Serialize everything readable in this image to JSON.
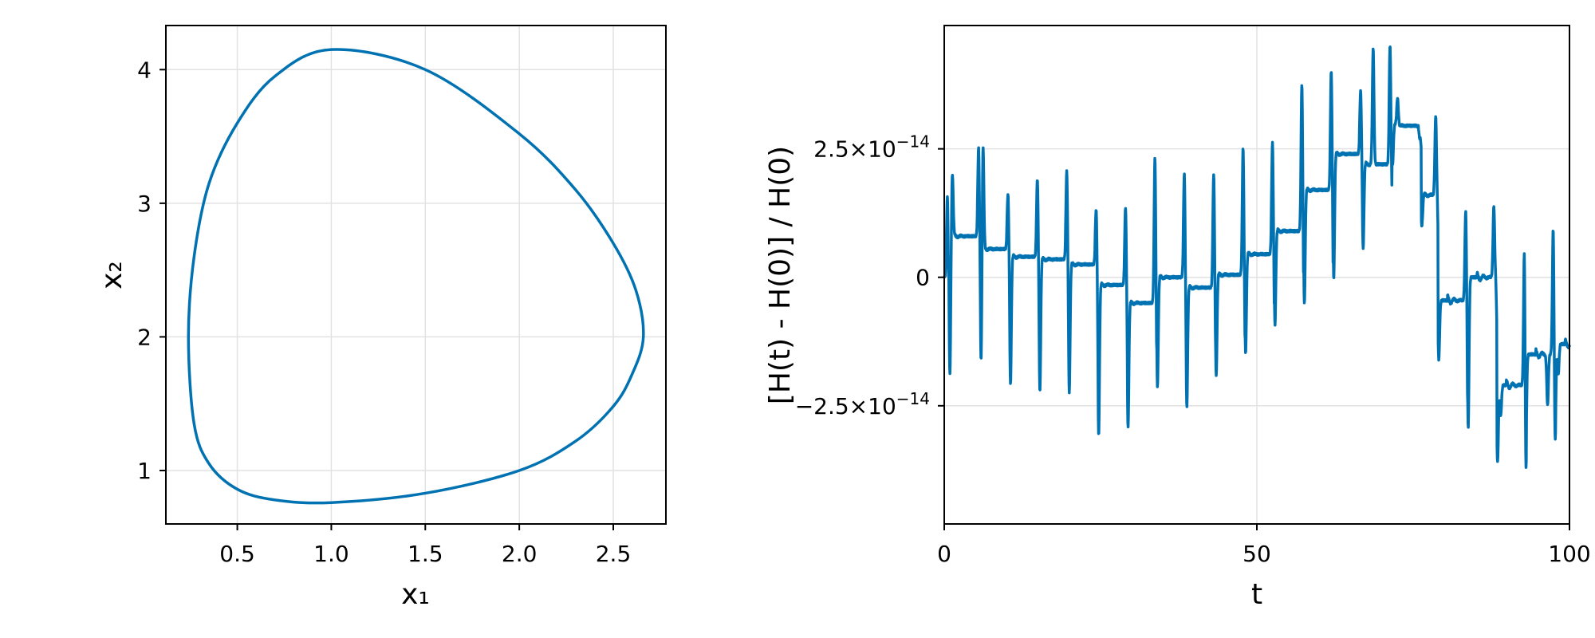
{
  "colors": {
    "series": "#0072b2",
    "grid": "#e2e2e2",
    "frame": "#000000"
  },
  "chart_data": [
    {
      "type": "line",
      "xlabel": "x₁",
      "ylabel": "x₂",
      "xlim": [
        0.12,
        2.78
      ],
      "ylim": [
        0.6,
        4.33
      ],
      "grid": true,
      "xticks": [
        0.5,
        1.0,
        1.5,
        2.0,
        2.5
      ],
      "xtick_labels": [
        "0.5",
        "1.0",
        "1.5",
        "2.0",
        "2.5"
      ],
      "yticks": [
        1,
        2,
        3,
        4
      ],
      "ytick_labels": [
        "1",
        "2",
        "3",
        "4"
      ],
      "closed": true,
      "series": [
        {
          "points": [
            [
              1.0,
              4.15
            ],
            [
              1.5,
              4.0
            ],
            [
              2.0,
              3.52
            ],
            [
              2.3,
              3.1
            ],
            [
              2.5,
              2.7
            ],
            [
              2.62,
              2.35
            ],
            [
              2.66,
              2.0
            ],
            [
              2.6,
              1.72
            ],
            [
              2.5,
              1.48
            ],
            [
              2.3,
              1.22
            ],
            [
              2.0,
              1.0
            ],
            [
              1.5,
              0.83
            ],
            [
              1.0,
              0.76
            ],
            [
              0.7,
              0.78
            ],
            [
              0.5,
              0.86
            ],
            [
              0.35,
              1.05
            ],
            [
              0.27,
              1.35
            ],
            [
              0.24,
              2.0
            ],
            [
              0.27,
              2.6
            ],
            [
              0.35,
              3.15
            ],
            [
              0.5,
              3.6
            ],
            [
              0.7,
              3.95
            ]
          ]
        }
      ]
    },
    {
      "type": "line",
      "xlabel": "t",
      "ylabel": "[H(t) - H(0)] / H(0)",
      "xlim": [
        0,
        100
      ],
      "ylim": [
        -4.8e-14,
        4.9e-14
      ],
      "grid": true,
      "xticks": [
        0,
        50,
        100
      ],
      "xtick_labels": [
        "0",
        "50",
        "100"
      ],
      "yticks": [
        2.5e-14,
        0,
        -2.5e-14
      ],
      "ytick_labels": [
        {
          "mantissa": "2.5×10",
          "exponent": "−14"
        },
        {
          "mantissa": "0",
          "exponent": ""
        },
        {
          "mantissa": "−2.5×10",
          "exponent": "−14"
        }
      ],
      "period": 4.7,
      "baseline_levels": [
        [
          0,
          0.0
        ],
        [
          0.7,
          8e-15
        ],
        [
          5.8,
          5.5e-15
        ],
        [
          10.5,
          4e-15
        ],
        [
          15.2,
          3.5e-15
        ],
        [
          19.9,
          2.5e-15
        ],
        [
          24.6,
          -1.5e-15
        ],
        [
          29.3,
          -5e-15
        ],
        [
          34.0,
          0.0
        ],
        [
          38.7,
          -2e-15
        ],
        [
          43.4,
          5e-16
        ],
        [
          48.1,
          4.5e-15
        ],
        [
          52.8,
          9e-15
        ],
        [
          57.5,
          1.7e-14
        ],
        [
          62.2,
          2.4e-14
        ],
        [
          66.9,
          2.2e-14
        ],
        [
          71.6,
          2.95e-14
        ],
        [
          76.3,
          1.6e-14
        ],
        [
          79.0,
          -4.5e-15
        ],
        [
          83.7,
          0.0
        ],
        [
          88.4,
          -2.1e-14
        ],
        [
          93.1,
          -1.5e-14
        ],
        [
          97.8,
          -1.3e-14
        ],
        [
          100,
          -1.3e-14
        ]
      ],
      "spikes": [
        [
          0.5,
          1.6e-14
        ],
        [
          0.9,
          -1.9e-14
        ],
        [
          1.3,
          2.05e-14
        ],
        [
          5.5,
          2.5e-14
        ],
        [
          5.9,
          -1.7e-14
        ],
        [
          6.2,
          2.65e-14
        ],
        [
          10.2,
          1.6e-14
        ],
        [
          10.6,
          -2.05e-14
        ],
        [
          14.9,
          1.9e-14
        ],
        [
          15.3,
          -2.2e-14
        ],
        [
          19.6,
          2.05e-14
        ],
        [
          20.0,
          -2.2e-14
        ],
        [
          24.3,
          1.3e-14
        ],
        [
          24.7,
          -3.05e-14
        ],
        [
          29.0,
          1.35e-14
        ],
        [
          29.4,
          -2.9e-14
        ],
        [
          33.7,
          2.3e-14
        ],
        [
          34.1,
          -2.1e-14
        ],
        [
          38.4,
          2e-14
        ],
        [
          38.8,
          -2.5e-14
        ],
        [
          43.1,
          2e-14
        ],
        [
          43.5,
          -1.9e-14
        ],
        [
          47.8,
          2.5e-14
        ],
        [
          48.2,
          -1.45e-14
        ],
        [
          52.5,
          2.6e-14
        ],
        [
          52.9,
          -9e-15
        ],
        [
          57.2,
          3.75e-14
        ],
        [
          57.6,
          -5e-15
        ],
        [
          61.9,
          4e-14
        ],
        [
          62.3,
          0.0
        ],
        [
          66.6,
          3.6e-14
        ],
        [
          67.0,
          6e-15
        ],
        [
          68.6,
          4.45e-14
        ],
        [
          71.3,
          4.5e-14
        ],
        [
          71.7,
          2.2e-14
        ],
        [
          72.5,
          3.5e-14
        ],
        [
          76.0,
          2.7e-14
        ],
        [
          76.4,
          1.05e-14
        ],
        [
          78.6,
          3.15e-14
        ],
        [
          79.1,
          -1.6e-14
        ],
        [
          83.4,
          1.3e-14
        ],
        [
          83.8,
          -2.95e-14
        ],
        [
          87.9,
          1.4e-14
        ],
        [
          88.5,
          -3.6e-14
        ],
        [
          89.0,
          -2.7e-14
        ],
        [
          92.8,
          1e-14
        ],
        [
          93.0,
          -4.35e-14
        ],
        [
          96.5,
          -2.5e-14
        ],
        [
          97.4,
          1.05e-14
        ],
        [
          97.7,
          -3.3e-14
        ],
        [
          98.2,
          -1.9e-14
        ]
      ]
    }
  ]
}
